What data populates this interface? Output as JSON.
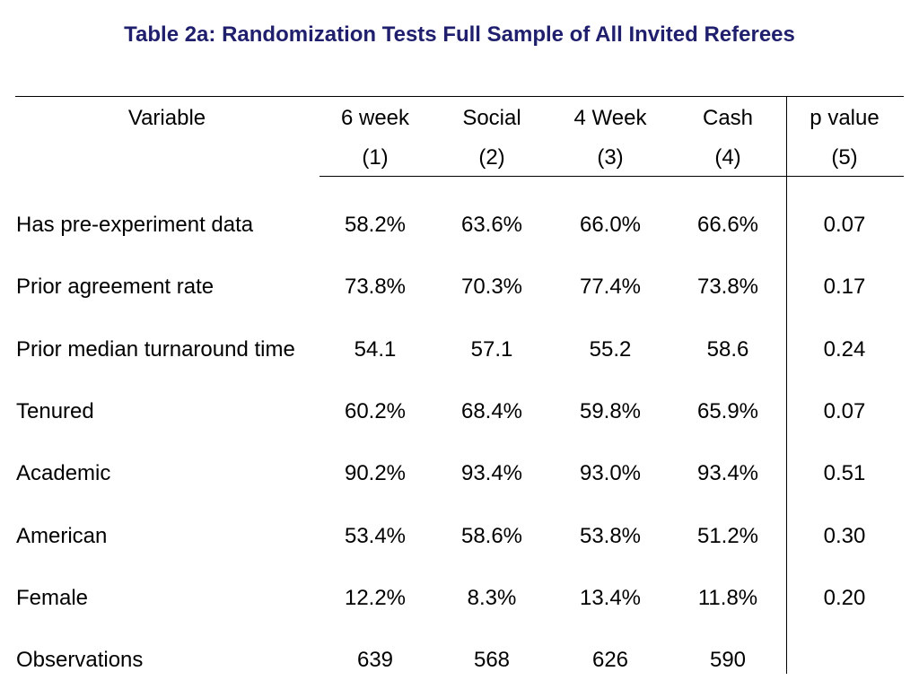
{
  "title": "Table 2a: Randomization Tests Full Sample of All Invited Referees",
  "colors": {
    "title": "#1f1f6e",
    "text": "#000000",
    "rules": "#000000"
  },
  "table": {
    "header": {
      "variable_label": "Variable",
      "columns": [
        {
          "name": "6 week",
          "number": "(1)"
        },
        {
          "name": "Social",
          "number": "(2)"
        },
        {
          "name": "4 Week",
          "number": "(3)"
        },
        {
          "name": "Cash",
          "number": "(4)"
        },
        {
          "name": "p value",
          "number": "(5)"
        }
      ]
    },
    "rows": [
      {
        "label": "Has pre-experiment data",
        "values": [
          "58.2%",
          "63.6%",
          "66.0%",
          "66.6%",
          "0.07"
        ]
      },
      {
        "label": "Prior agreement rate",
        "values": [
          "73.8%",
          "70.3%",
          "77.4%",
          "73.8%",
          "0.17"
        ]
      },
      {
        "label": "Prior median turnaround time",
        "values": [
          "54.1",
          "57.1",
          "55.2",
          "58.6",
          "0.24"
        ]
      },
      {
        "label": "Tenured",
        "values": [
          "60.2%",
          "68.4%",
          "59.8%",
          "65.9%",
          "0.07"
        ]
      },
      {
        "label": "Academic",
        "values": [
          "90.2%",
          "93.4%",
          "93.0%",
          "93.4%",
          "0.51"
        ]
      },
      {
        "label": "American",
        "values": [
          "53.4%",
          "58.6%",
          "53.8%",
          "51.2%",
          "0.30"
        ]
      },
      {
        "label": "Female",
        "values": [
          "12.2%",
          "8.3%",
          "13.4%",
          "11.8%",
          "0.20"
        ]
      },
      {
        "label": "Observations",
        "values": [
          "639",
          "568",
          "626",
          "590",
          ""
        ]
      }
    ]
  }
}
